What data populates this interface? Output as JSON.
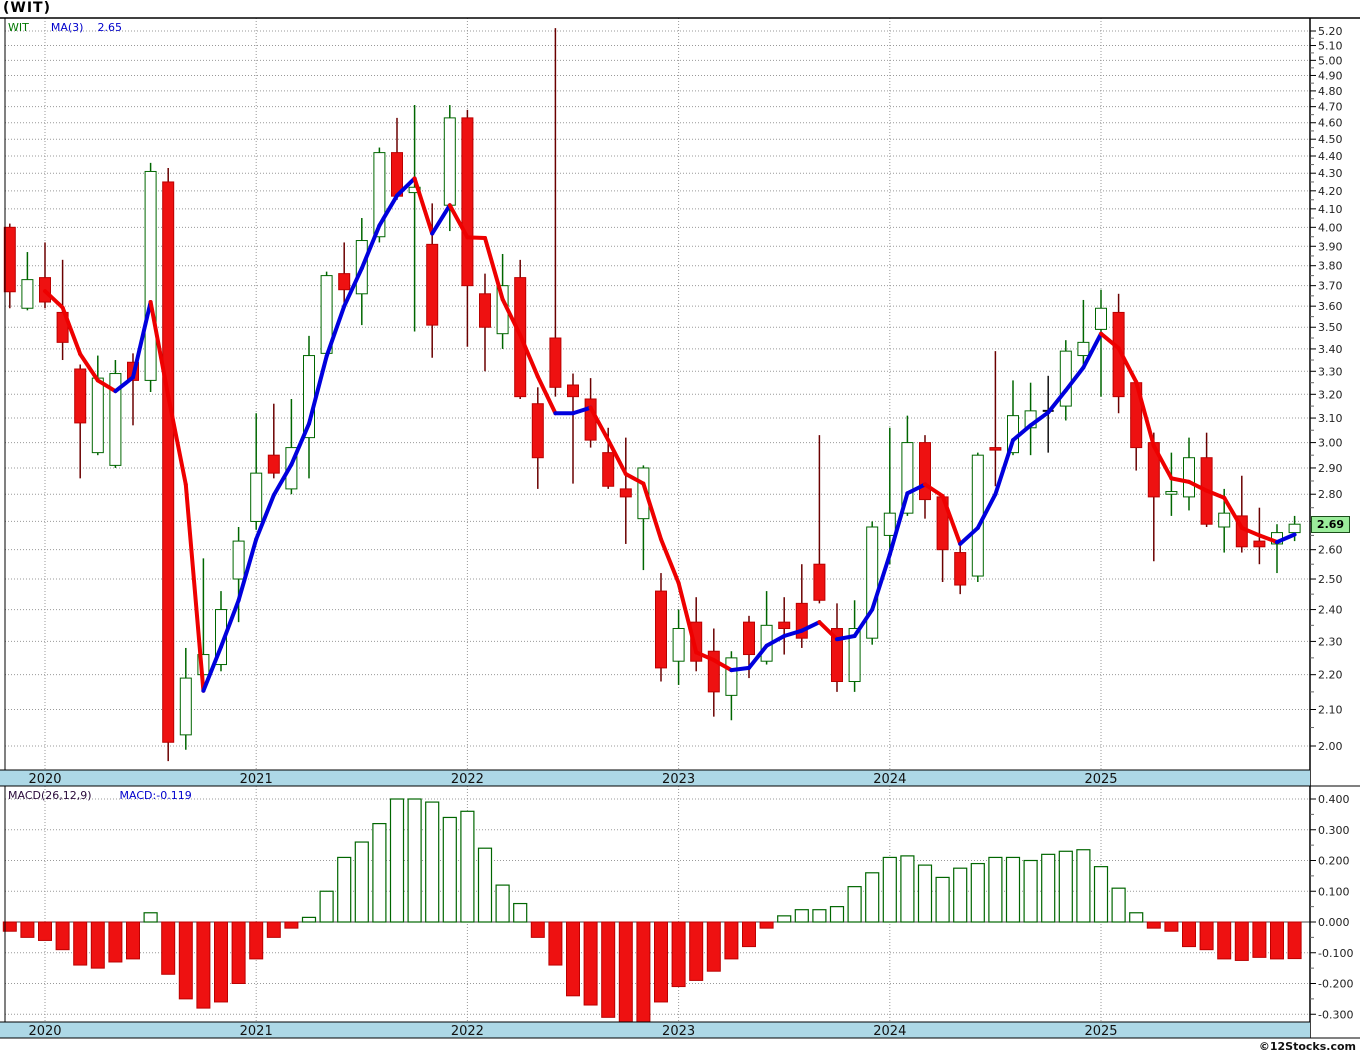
{
  "ui": {
    "title": "(WIT)",
    "legend_symbol": "WIT",
    "legend_ma_label": "MA(3)",
    "legend_ma_value": "2.65",
    "macd_label": "MACD(26,12,9)",
    "macd_value_label": "MACD:-0.119",
    "last_price_badge": "2.69",
    "copyright": "©12Stocks.com"
  },
  "colors": {
    "up_stroke": "#006600",
    "up_fill": "#FFFFFF",
    "up_wick": "#006600",
    "down_stroke": "#BB0000",
    "down_fill": "#EE1111",
    "down_wick": "#6B0000",
    "doji": "#111111",
    "ma_up": "#0000DD",
    "ma_down": "#EE0000",
    "grid": "#999999",
    "axis": "#000000",
    "tick_text": "#222222",
    "strip_bg": "#ADD8E6",
    "strip_text": "#111111",
    "badge_bg": "#9BEC9B",
    "macd_pos_stroke": "#006600",
    "macd_pos_fill": "#FFFFFF",
    "macd_neg_stroke": "#BB0000",
    "macd_neg_fill": "#EE1111"
  },
  "chart_data": [
    {
      "type": "candlestick",
      "title": "(WIT)",
      "symbol": "WIT",
      "interval": "monthly",
      "overlay": "MA(3)",
      "ma_last": 2.65,
      "last_close": 2.69,
      "yscale": "log",
      "ylim": [
        2.0,
        5.2
      ],
      "ytick_step": 0.1,
      "x_year_labels": [
        "2020",
        "2021",
        "2022",
        "2023",
        "2024",
        "2025"
      ],
      "months": [
        "2019-11",
        "2019-12",
        "2020-01",
        "2020-02",
        "2020-03",
        "2020-04",
        "2020-05",
        "2020-06",
        "2020-07",
        "2020-08",
        "2020-09",
        "2020-10",
        "2020-11",
        "2020-12",
        "2021-01",
        "2021-02",
        "2021-03",
        "2021-04",
        "2021-05",
        "2021-06",
        "2021-07",
        "2021-08",
        "2021-09",
        "2021-10",
        "2021-11",
        "2021-12",
        "2022-01",
        "2022-02",
        "2022-03",
        "2022-04",
        "2022-05",
        "2022-06",
        "2022-07",
        "2022-08",
        "2022-09",
        "2022-10",
        "2022-11",
        "2022-12",
        "2023-01",
        "2023-02",
        "2023-03",
        "2023-04",
        "2023-05",
        "2023-06",
        "2023-07",
        "2023-08",
        "2023-09",
        "2023-10",
        "2023-11",
        "2023-12",
        "2024-01",
        "2024-02",
        "2024-03",
        "2024-04",
        "2024-05",
        "2024-06",
        "2024-07",
        "2024-08",
        "2024-09",
        "2024-10",
        "2024-11",
        "2024-12",
        "2025-01",
        "2025-02",
        "2025-03",
        "2025-04",
        "2025-05",
        "2025-06",
        "2025-07",
        "2025-08",
        "2025-09",
        "2025-10",
        "2025-11",
        "2025-12"
      ],
      "ohlc": [
        [
          4.0,
          4.02,
          3.59,
          3.67
        ],
        [
          3.59,
          3.87,
          3.58,
          3.73
        ],
        [
          3.74,
          3.92,
          3.59,
          3.62
        ],
        [
          3.57,
          3.83,
          3.35,
          3.43
        ],
        [
          3.31,
          3.33,
          2.86,
          3.08
        ],
        [
          2.96,
          3.37,
          2.95,
          3.27
        ],
        [
          2.91,
          3.35,
          2.9,
          3.29
        ],
        [
          3.34,
          3.38,
          3.07,
          3.26
        ],
        [
          3.26,
          4.36,
          3.21,
          4.31
        ],
        [
          4.25,
          4.33,
          1.96,
          2.01
        ],
        [
          2.03,
          2.28,
          1.99,
          2.19
        ],
        [
          2.2,
          2.57,
          2.17,
          2.26
        ],
        [
          2.23,
          2.46,
          2.21,
          2.4
        ],
        [
          2.5,
          2.68,
          2.36,
          2.63
        ],
        [
          2.7,
          3.12,
          2.67,
          2.88
        ],
        [
          2.95,
          3.16,
          2.86,
          2.88
        ],
        [
          2.82,
          3.18,
          2.8,
          2.98
        ],
        [
          3.02,
          3.46,
          2.86,
          3.37
        ],
        [
          3.38,
          3.77,
          3.36,
          3.75
        ],
        [
          3.76,
          3.92,
          3.59,
          3.68
        ],
        [
          3.66,
          4.05,
          3.51,
          3.93
        ],
        [
          3.95,
          4.45,
          3.92,
          4.42
        ],
        [
          4.42,
          4.63,
          4.15,
          4.17
        ],
        [
          4.19,
          4.71,
          3.48,
          4.22
        ],
        [
          3.91,
          4.13,
          3.36,
          3.51
        ],
        [
          4.12,
          4.71,
          3.98,
          4.63
        ],
        [
          4.63,
          4.68,
          3.41,
          3.7
        ],
        [
          3.66,
          3.76,
          3.3,
          3.5
        ],
        [
          3.47,
          3.86,
          3.4,
          3.7
        ],
        [
          3.74,
          3.83,
          3.18,
          3.19
        ],
        [
          3.16,
          3.23,
          2.82,
          2.94
        ],
        [
          3.45,
          5.22,
          3.19,
          3.23
        ],
        [
          3.24,
          3.29,
          2.84,
          3.19
        ],
        [
          3.18,
          3.27,
          2.98,
          3.01
        ],
        [
          2.96,
          3.06,
          2.82,
          2.83
        ],
        [
          2.82,
          3.02,
          2.62,
          2.79
        ],
        [
          2.71,
          2.91,
          2.53,
          2.9
        ],
        [
          2.46,
          2.52,
          2.18,
          2.22
        ],
        [
          2.24,
          2.4,
          2.17,
          2.34
        ],
        [
          2.36,
          2.44,
          2.21,
          2.24
        ],
        [
          2.27,
          2.34,
          2.08,
          2.15
        ],
        [
          2.14,
          2.27,
          2.07,
          2.25
        ],
        [
          2.36,
          2.38,
          2.19,
          2.26
        ],
        [
          2.24,
          2.46,
          2.23,
          2.35
        ],
        [
          2.36,
          2.44,
          2.26,
          2.34
        ],
        [
          2.42,
          2.55,
          2.28,
          2.31
        ],
        [
          2.55,
          3.03,
          2.42,
          2.43
        ],
        [
          2.34,
          2.42,
          2.15,
          2.18
        ],
        [
          2.18,
          2.43,
          2.15,
          2.34
        ],
        [
          2.31,
          2.7,
          2.29,
          2.68
        ],
        [
          2.65,
          3.06,
          2.55,
          2.73
        ],
        [
          2.73,
          3.11,
          2.72,
          3.0
        ],
        [
          3.0,
          3.03,
          2.71,
          2.78
        ],
        [
          2.79,
          2.8,
          2.49,
          2.6
        ],
        [
          2.59,
          2.63,
          2.45,
          2.48
        ],
        [
          2.51,
          2.96,
          2.49,
          2.95
        ],
        [
          2.98,
          3.39,
          2.83,
          2.97
        ],
        [
          2.96,
          3.26,
          2.95,
          3.11
        ],
        [
          3.06,
          3.25,
          2.95,
          3.13
        ],
        [
          3.13,
          3.28,
          2.96,
          3.13
        ],
        [
          3.15,
          3.44,
          3.09,
          3.39
        ],
        [
          3.37,
          3.63,
          3.33,
          3.43
        ],
        [
          3.49,
          3.68,
          3.19,
          3.59
        ],
        [
          3.57,
          3.66,
          3.12,
          3.19
        ],
        [
          3.25,
          3.26,
          2.89,
          2.98
        ],
        [
          3.0,
          3.04,
          2.56,
          2.79
        ],
        [
          2.8,
          2.96,
          2.72,
          2.81
        ],
        [
          2.79,
          3.02,
          2.74,
          2.94
        ],
        [
          2.94,
          3.04,
          2.68,
          2.69
        ],
        [
          2.68,
          2.82,
          2.59,
          2.73
        ],
        [
          2.72,
          2.87,
          2.59,
          2.61
        ],
        [
          2.63,
          2.75,
          2.55,
          2.61
        ],
        [
          2.62,
          2.69,
          2.52,
          2.66
        ],
        [
          2.66,
          2.72,
          2.63,
          2.69
        ]
      ]
    },
    {
      "type": "bar",
      "title": "MACD(26,12,9)",
      "last_value": -0.119,
      "ylim": [
        -0.3,
        0.4
      ],
      "ytick_step": 0.1,
      "values": [
        -0.03,
        -0.05,
        -0.06,
        -0.09,
        -0.14,
        -0.15,
        -0.13,
        -0.12,
        0.03,
        -0.17,
        -0.25,
        -0.28,
        -0.26,
        -0.2,
        -0.12,
        -0.05,
        -0.02,
        0.015,
        0.1,
        0.21,
        0.26,
        0.32,
        0.4,
        0.4,
        0.39,
        0.34,
        0.36,
        0.24,
        0.12,
        0.06,
        -0.05,
        -0.14,
        -0.24,
        -0.27,
        -0.31,
        -0.33,
        -0.33,
        -0.26,
        -0.21,
        -0.19,
        -0.16,
        -0.12,
        -0.08,
        -0.02,
        0.02,
        0.04,
        0.04,
        0.05,
        0.115,
        0.16,
        0.21,
        0.215,
        0.185,
        0.145,
        0.175,
        0.19,
        0.21,
        0.21,
        0.2,
        0.22,
        0.23,
        0.235,
        0.18,
        0.11,
        0.03,
        -0.02,
        -0.03,
        -0.08,
        -0.09,
        -0.12,
        -0.125,
        -0.115,
        -0.12,
        -0.119
      ]
    }
  ]
}
